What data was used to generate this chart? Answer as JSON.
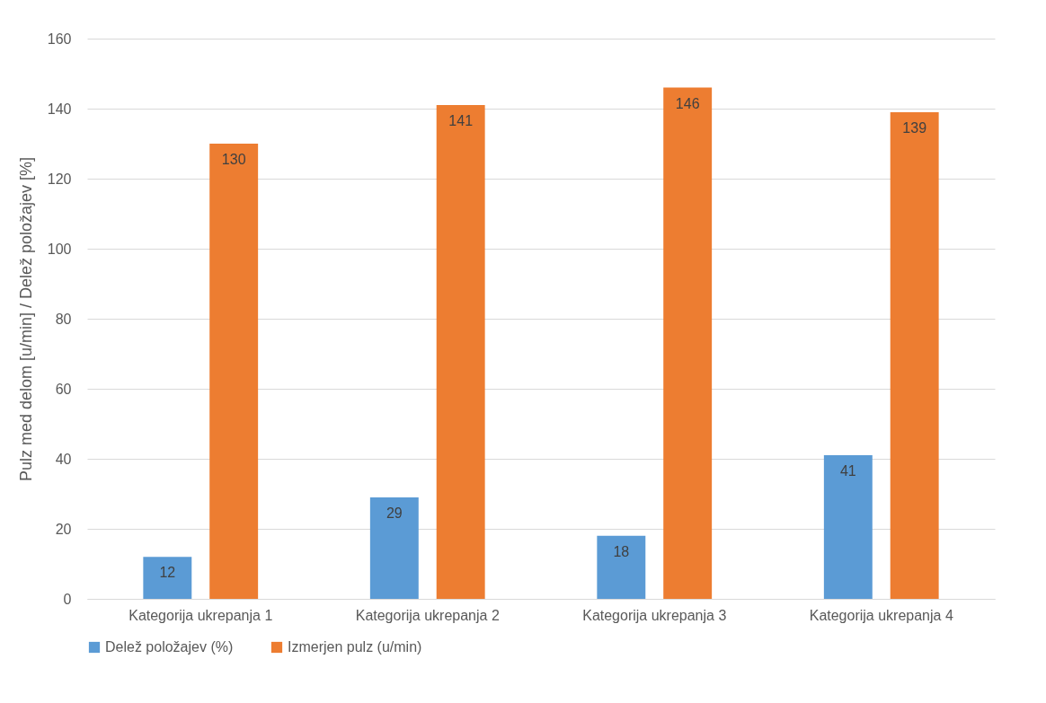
{
  "chart_data": {
    "type": "bar",
    "ylabel": "Pulz med delom [u/min] / Delež položajev [%]",
    "categories": [
      "Kategorija ukrepanja 1",
      "Kategorija ukrepanja 2",
      "Kategorija ukrepanja 3",
      "Kategorija ukrepanja 4"
    ],
    "series": [
      {
        "name": "Delež položajev (%)",
        "color": "#5b9bd5",
        "values": [
          12,
          29,
          18,
          41
        ]
      },
      {
        "name": "Izmerjen pulz (u/min)",
        "color": "#ed7d31",
        "values": [
          130,
          141,
          146,
          139
        ]
      }
    ],
    "ylim": [
      0,
      160
    ],
    "yticks": [
      0,
      20,
      40,
      60,
      80,
      100,
      120,
      140,
      160
    ],
    "grid": "y",
    "legend": "bottom",
    "data_labels": true
  }
}
